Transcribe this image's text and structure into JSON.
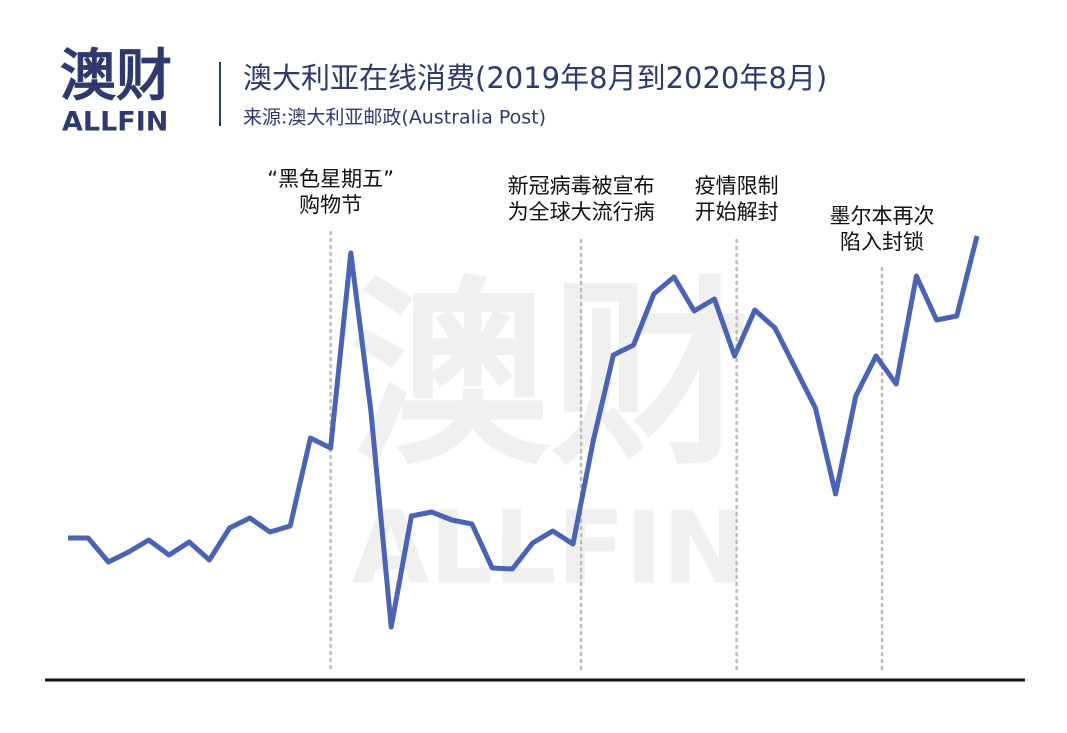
{
  "header": {
    "logo": "澳财",
    "logo_sub": "ALLFIN"
  },
  "chart_data": {
    "type": "line",
    "title": "澳大利亚在线消费(2019年8月到2020年8月)",
    "subtitle": "来源:澳大利亚邮政(Australia Post)",
    "watermark": {
      "text": "澳财",
      "sub": "ALLFIN"
    },
    "categories": [
      null,
      null,
      null,
      null,
      null,
      null,
      null,
      null,
      null,
      null,
      null,
      null,
      null,
      null,
      null,
      null,
      null,
      null,
      null,
      null,
      null,
      null,
      null,
      null,
      null,
      null,
      null,
      null,
      null,
      null,
      null,
      null,
      null,
      null,
      null,
      null,
      null,
      null,
      null,
      null,
      null,
      null,
      null,
      null,
      null,
      null
    ],
    "series": [
      {
        "name": "澳大利亚在线消费",
        "color": "#4a63b2",
        "values": [
          28.4,
          28.4,
          23.6,
          25.6,
          28,
          25,
          27.6,
          24,
          30.4,
          32.4,
          29.6,
          30.8,
          48.4,
          46.4,
          85.4,
          53.6,
          10.6,
          32.8,
          33.6,
          32,
          31.2,
          22.4,
          22.2,
          27.4,
          29.8,
          27.2,
          47.8,
          65,
          67,
          77.2,
          80.6,
          73.8,
          76.2,
          64.8,
          74,
          70.4,
          62.4,
          54.4,
          37.2,
          56.8,
          64.8,
          59.2,
          80.8,
          72,
          72.8,
          88.8
        ]
      }
    ],
    "ylim": [
      0,
      100
    ],
    "annotations": [
      {
        "lines": [
          "“黑色星期五”",
          "购物节"
        ]
      },
      {
        "lines": [
          "新冠病毒被宣布",
          "为全球大流行病"
        ]
      },
      {
        "lines": [
          "疫情限制",
          "开始解封"
        ]
      },
      {
        "lines": [
          "墨尔本再次",
          "陷入封锁"
        ]
      }
    ]
  }
}
